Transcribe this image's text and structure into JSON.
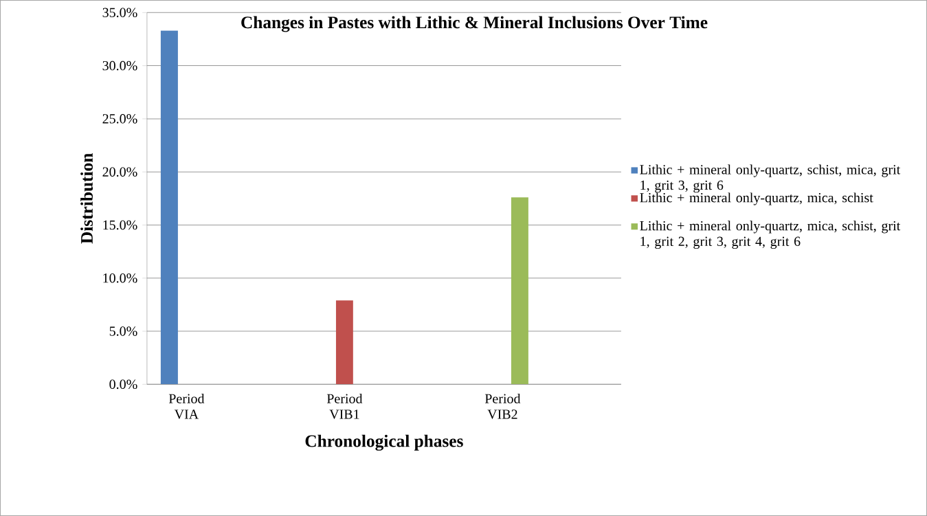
{
  "chart_data": {
    "type": "bar",
    "title": "Changes in Pastes with Lithic & Mineral Inclusions Over Time",
    "xlabel": "Chronological phases",
    "ylabel": "Distribution",
    "categories": [
      "Period VIA",
      null,
      "Period VIB1",
      null,
      "Period VIB2",
      null
    ],
    "series": [
      {
        "name": "Lithic + mineral only-quartz, schist, mica, grit 1, grit 3, grit 6",
        "color": "#4f81bd",
        "values": [
          33.3,
          null,
          null,
          null,
          null,
          null
        ]
      },
      {
        "name": "Lithic + mineral only-quartz, mica, schist",
        "color": "#c0504d",
        "values": [
          null,
          null,
          7.9,
          null,
          null,
          null
        ]
      },
      {
        "name": "Lithic + mineral only-quartz, mica, schist, grit 1, grit 2, grit 3, grit 4, grit 6",
        "color": "#9bbb59",
        "values": [
          null,
          null,
          null,
          null,
          17.6,
          null
        ]
      }
    ],
    "ylim": [
      0,
      35
    ],
    "yticks": [
      {
        "value": 0,
        "label": "0.0%"
      },
      {
        "value": 5,
        "label": "5.0%"
      },
      {
        "value": 10,
        "label": "10.0%"
      },
      {
        "value": 15,
        "label": "15.0%"
      },
      {
        "value": 20,
        "label": "20.0%"
      },
      {
        "value": 25,
        "label": "25.0%"
      },
      {
        "value": 30,
        "label": "30.0%"
      },
      {
        "value": 35,
        "label": "35.0%"
      }
    ],
    "grid": "y",
    "legend": "right"
  }
}
